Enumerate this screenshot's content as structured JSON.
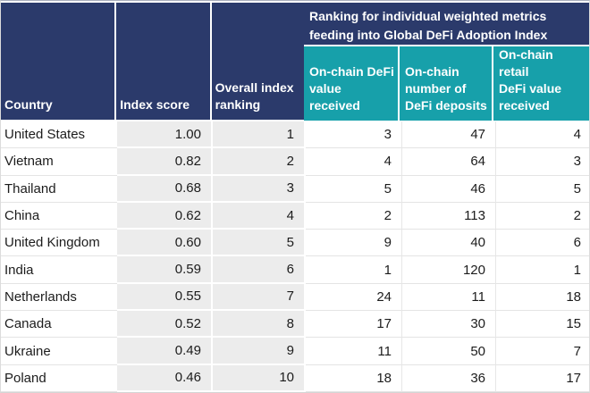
{
  "colors": {
    "header_navy": "#2B3A6B",
    "header_teal": "#17A0AA",
    "shaded_column_gray": "#ECECEC",
    "header_text": "#FFFFFF",
    "body_text": "#1C1C1C"
  },
  "header": {
    "country": "Country",
    "index_score": "Index score",
    "overall_rank": "Overall index\nranking",
    "banner": "Ranking for individual weighted metrics\nfeeding into Global DeFi Adoption Index",
    "metric1": "On-chain DeFi\nvalue received",
    "metric2": "On-chain\nnumber of\nDeFi deposits",
    "metric3": "On-chain retail\nDeFi value\nreceived"
  },
  "rows": [
    {
      "country": "United States",
      "index_score": "1.00",
      "overall_rank": "1",
      "defi_value": "3",
      "defi_deposits": "47",
      "retail_value": "4"
    },
    {
      "country": "Vietnam",
      "index_score": "0.82",
      "overall_rank": "2",
      "defi_value": "4",
      "defi_deposits": "64",
      "retail_value": "3"
    },
    {
      "country": "Thailand",
      "index_score": "0.68",
      "overall_rank": "3",
      "defi_value": "5",
      "defi_deposits": "46",
      "retail_value": "5"
    },
    {
      "country": "China",
      "index_score": "0.62",
      "overall_rank": "4",
      "defi_value": "2",
      "defi_deposits": "113",
      "retail_value": "2"
    },
    {
      "country": "United Kingdom",
      "index_score": "0.60",
      "overall_rank": "5",
      "defi_value": "9",
      "defi_deposits": "40",
      "retail_value": "6"
    },
    {
      "country": "India",
      "index_score": "0.59",
      "overall_rank": "6",
      "defi_value": "1",
      "defi_deposits": "120",
      "retail_value": "1"
    },
    {
      "country": "Netherlands",
      "index_score": "0.55",
      "overall_rank": "7",
      "defi_value": "24",
      "defi_deposits": "11",
      "retail_value": "18"
    },
    {
      "country": "Canada",
      "index_score": "0.52",
      "overall_rank": "8",
      "defi_value": "17",
      "defi_deposits": "30",
      "retail_value": "15"
    },
    {
      "country": "Ukraine",
      "index_score": "0.49",
      "overall_rank": "9",
      "defi_value": "11",
      "defi_deposits": "50",
      "retail_value": "7"
    },
    {
      "country": "Poland",
      "index_score": "0.46",
      "overall_rank": "10",
      "defi_value": "18",
      "defi_deposits": "36",
      "retail_value": "17"
    }
  ],
  "chart_data": {
    "type": "table",
    "title": "Ranking for individual weighted metrics feeding into Global DeFi Adoption Index",
    "columns": [
      "Country",
      "Index score",
      "Overall index ranking",
      "On-chain DeFi value received",
      "On-chain number of DeFi deposits",
      "On-chain retail DeFi value received"
    ],
    "rows": [
      [
        "United States",
        1.0,
        1,
        3,
        47,
        4
      ],
      [
        "Vietnam",
        0.82,
        2,
        4,
        64,
        3
      ],
      [
        "Thailand",
        0.68,
        3,
        5,
        46,
        5
      ],
      [
        "China",
        0.62,
        4,
        2,
        113,
        2
      ],
      [
        "United Kingdom",
        0.6,
        5,
        9,
        40,
        6
      ],
      [
        "India",
        0.59,
        6,
        1,
        120,
        1
      ],
      [
        "Netherlands",
        0.55,
        7,
        24,
        11,
        18
      ],
      [
        "Canada",
        0.52,
        8,
        17,
        30,
        15
      ],
      [
        "Ukraine",
        0.49,
        9,
        11,
        50,
        7
      ],
      [
        "Poland",
        0.46,
        10,
        18,
        36,
        17
      ]
    ]
  }
}
